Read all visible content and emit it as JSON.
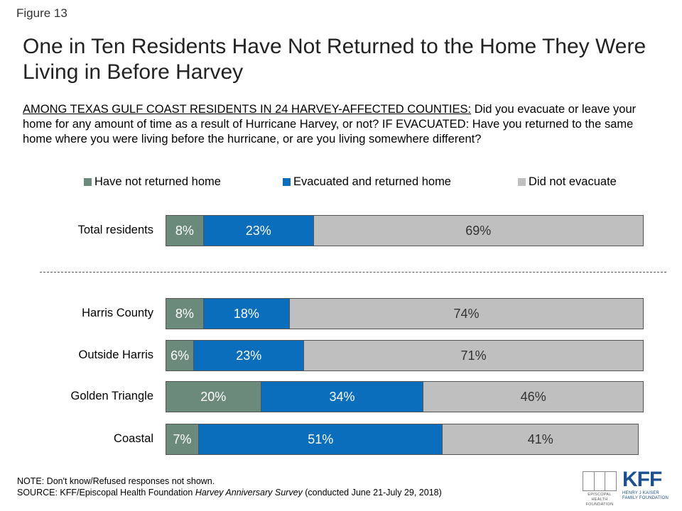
{
  "figure_label": "Figure 13",
  "title": "One in Ten Residents Have Not Returned to the Home They Were Living in Before Harvey",
  "question_lead": "AMONG TEXAS GULF COAST RESIDENTS IN 24 HARVEY-AFFECTED COUNTIES:",
  "question_text": " Did you evacuate or leave your home for any amount of time as a result of Hurricane Harvey, or not? IF EVACUATED: Have you returned to the same home where you were living before the hurricane, or are you living somewhere different?",
  "colors": {
    "not_returned": "#6b8a7c",
    "returned": "#0a6ebd",
    "not_evacuated": "#bfbfbf"
  },
  "chart_data": {
    "type": "bar",
    "orientation": "horizontal-stacked",
    "legend_position": "top",
    "categories": [
      "Total residents",
      "Harris County",
      "Outside Harris",
      "Golden Triangle",
      "Coastal"
    ],
    "series": [
      {
        "name": "Have not returned home",
        "values": [
          8,
          8,
          6,
          20,
          7
        ]
      },
      {
        "name": "Evacuated and returned home",
        "values": [
          23,
          18,
          23,
          34,
          51
        ]
      },
      {
        "name": "Did not evacuate",
        "values": [
          69,
          74,
          71,
          46,
          41
        ]
      }
    ],
    "labels": [
      [
        "8%",
        "23%",
        "69%"
      ],
      [
        "8%",
        "18%",
        "74%"
      ],
      [
        "6%",
        "23%",
        "71%"
      ],
      [
        "20%",
        "34%",
        "46%"
      ],
      [
        "7%",
        "51%",
        "41%"
      ]
    ],
    "xlim": [
      0,
      100
    ]
  },
  "note": "NOTE: Don't know/Refused responses not shown.",
  "source_prefix": "SOURCE: KFF/Episcopal Health Foundation ",
  "source_title": "Harvey Anniversary Survey",
  "source_suffix": " (conducted June 21-July 29, 2018)",
  "logo_ehf_text": "EPISCOPAL HEALTH FOUNDATION",
  "logo_kff_mark": "KFF",
  "logo_kff_sub": "HENRY J KAISER FAMILY FOUNDATION"
}
